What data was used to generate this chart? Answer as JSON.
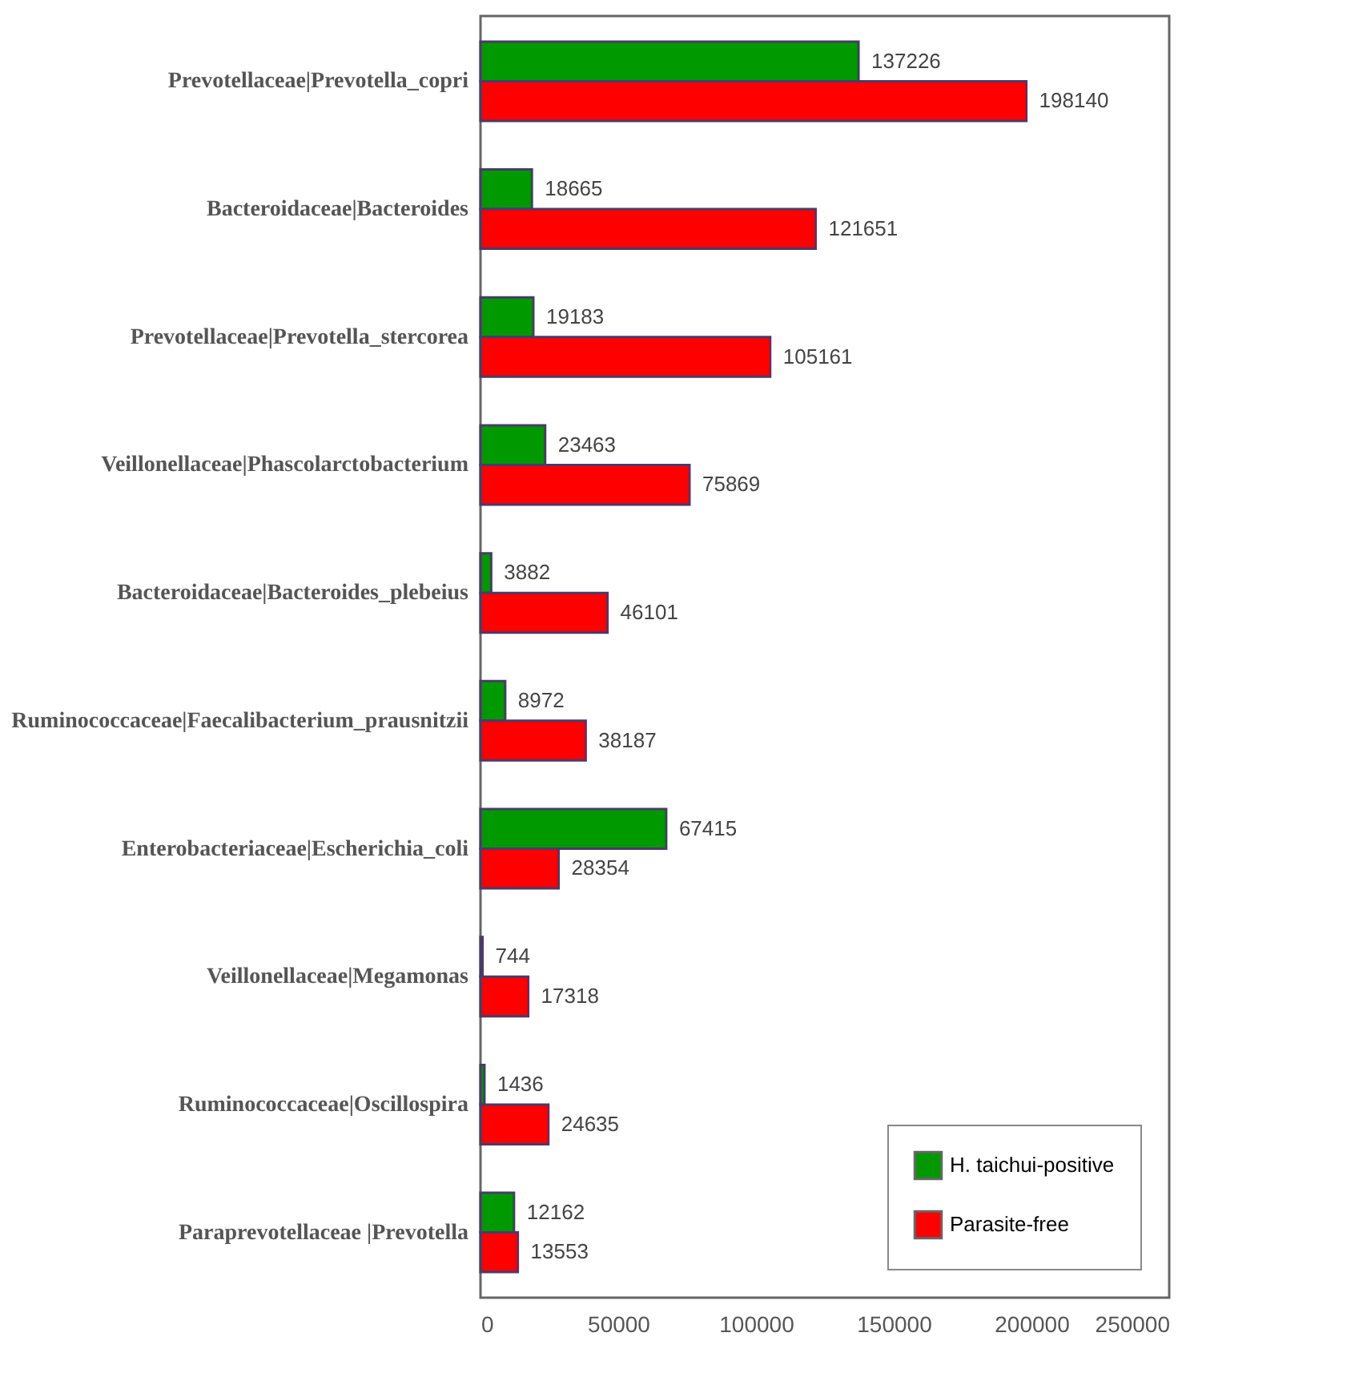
{
  "chart_data": {
    "type": "bar",
    "orientation": "horizontal",
    "categories": [
      "Prevotellaceae|Prevotella_copri",
      "Bacteroidaceae|Bacteroides",
      "Prevotellaceae|Prevotella_stercorea",
      "Veillonellaceae|Phascolarctobacterium",
      "Bacteroidaceae|Bacteroides_plebeius",
      "Ruminococcaceae|Faecalibacterium_prausnitzii",
      "Enterobacteriaceae|Escherichia_coli",
      "Veillonellaceae|Megamonas",
      "Ruminococcaceae|Oscillospira",
      "Paraprevotellaceae |Prevotella"
    ],
    "series": [
      {
        "name": "H. taichui-positive",
        "color": "#009900",
        "values": [
          137226,
          18665,
          19183,
          23463,
          3882,
          8972,
          67415,
          744,
          1436,
          12162
        ]
      },
      {
        "name": "Parasite-free",
        "color": "#ff0000",
        "values": [
          198140,
          121651,
          105161,
          75869,
          46101,
          38187,
          28354,
          17318,
          24635,
          13553
        ]
      }
    ],
    "xlim": [
      0,
      250000
    ],
    "xticks": [
      0,
      50000,
      100000,
      150000,
      200000,
      250000
    ],
    "grid": false,
    "legend": "bottom right",
    "data_labels": true
  }
}
